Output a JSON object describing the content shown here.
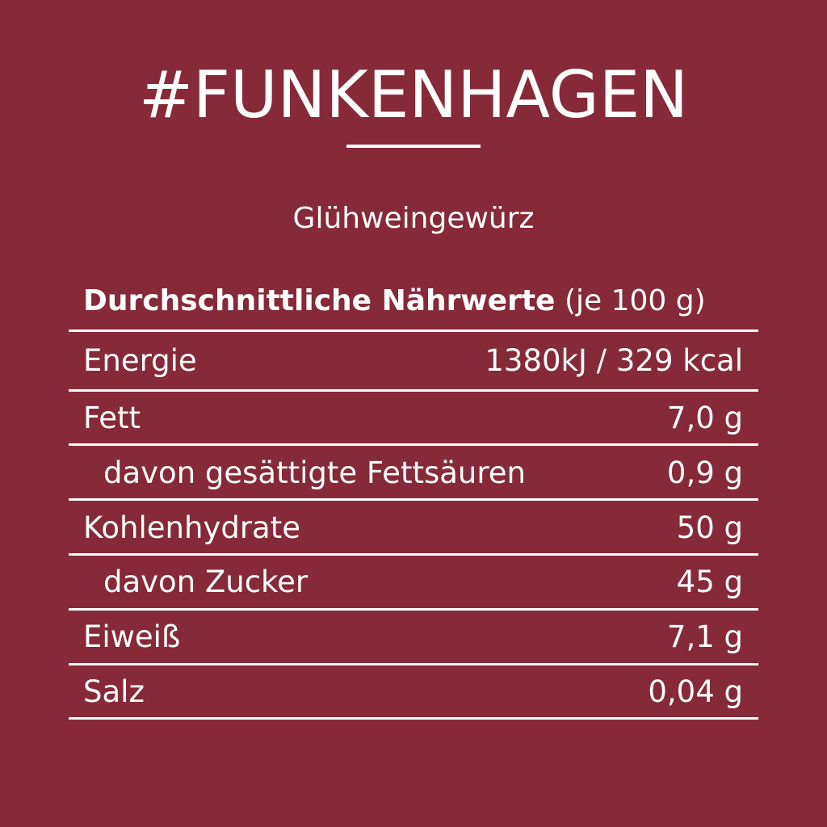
{
  "brand": "#FUNKENHAGEN",
  "product": "Glühweingewürz",
  "table": {
    "heading_bold": "Durchschnittliche Nährwerte",
    "heading_unit": "(je 100 g)",
    "rows": [
      {
        "label": "Energie",
        "value": "1380kJ / 329 kcal"
      },
      {
        "label": "Fett",
        "value": "7,0 g"
      },
      {
        "label": "davon gesättigte Fettsäuren",
        "value": "0,9 g"
      },
      {
        "label": "Kohlenhydrate",
        "value": "50 g"
      },
      {
        "label": "davon Zucker",
        "value": "45 g"
      },
      {
        "label": "Eiweiß",
        "value": "7,1 g"
      },
      {
        "label": "Salz",
        "value": "0,04 g"
      }
    ]
  },
  "colors": {
    "background": "#862938",
    "text": "#ffffff"
  }
}
